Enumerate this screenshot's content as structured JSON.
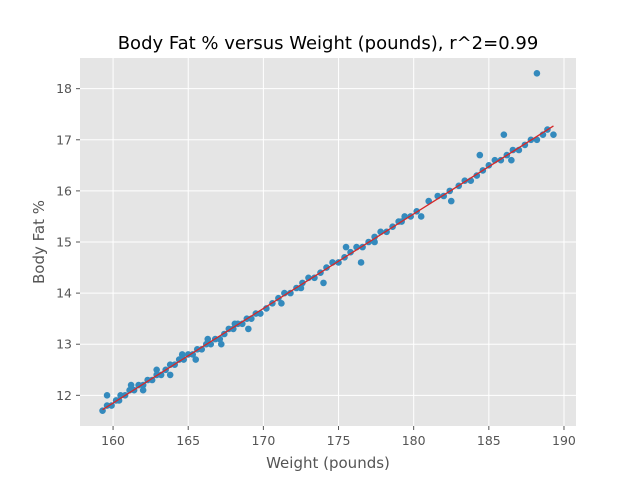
{
  "chart_data": {
    "type": "scatter",
    "title": "Body Fat % versus Weight (pounds), r^2=0.99",
    "xlabel": "Weight (pounds)",
    "ylabel": "Body Fat %",
    "xlim": [
      157.8,
      190.8
    ],
    "ylim": [
      11.4,
      18.6
    ],
    "xticks": [
      160,
      165,
      170,
      175,
      180,
      185,
      190
    ],
    "yticks": [
      12,
      13,
      14,
      15,
      16,
      17,
      18
    ],
    "grid": true,
    "colors": {
      "background": "#e5e5e5",
      "points": "#348abd",
      "fit_line": "#d62728"
    },
    "series": [
      {
        "kind": "points",
        "x": [
          159.3,
          159.6,
          159.9,
          160.2,
          160.5,
          160.8,
          161.1,
          161.4,
          161.7,
          162.0,
          162.3,
          162.6,
          162.9,
          163.2,
          163.5,
          163.8,
          164.1,
          164.4,
          164.7,
          165.0,
          165.3,
          165.6,
          165.9,
          166.2,
          166.5,
          166.8,
          167.1,
          167.4,
          167.7,
          168.0,
          168.3,
          168.6,
          168.9,
          169.2,
          169.5,
          169.8,
          170.2,
          170.6,
          171.0,
          171.4,
          171.8,
          172.2,
          172.6,
          173.0,
          173.4,
          173.8,
          174.2,
          174.6,
          175.0,
          175.4,
          175.8,
          176.2,
          176.6,
          177.0,
          177.4,
          177.8,
          178.2,
          178.6,
          179.0,
          179.4,
          179.8,
          180.2,
          181.0,
          181.6,
          182.0,
          182.4,
          183.0,
          183.4,
          183.8,
          184.2,
          184.6,
          185.0,
          185.4,
          185.8,
          186.2,
          186.6,
          187.0,
          187.4,
          187.8,
          188.2,
          188.6,
          188.9,
          189.3,
          159.6,
          160.4,
          161.2,
          162.0,
          162.9,
          163.8,
          164.6,
          165.5,
          166.3,
          167.2,
          168.1,
          169.0,
          171.2,
          172.5,
          174.0,
          175.5,
          176.5,
          177.4,
          179.2,
          180.5,
          182.5,
          184.4,
          186.0,
          186.5,
          188.2
        ],
        "y": [
          11.7,
          11.8,
          11.8,
          11.9,
          12.0,
          12.0,
          12.1,
          12.1,
          12.2,
          12.2,
          12.3,
          12.3,
          12.4,
          12.4,
          12.5,
          12.6,
          12.6,
          12.7,
          12.7,
          12.8,
          12.8,
          12.9,
          12.9,
          13.0,
          13.0,
          13.1,
          13.1,
          13.2,
          13.3,
          13.3,
          13.4,
          13.4,
          13.5,
          13.5,
          13.6,
          13.6,
          13.7,
          13.8,
          13.9,
          14.0,
          14.0,
          14.1,
          14.2,
          14.3,
          14.3,
          14.4,
          14.5,
          14.6,
          14.6,
          14.7,
          14.8,
          14.9,
          14.9,
          15.0,
          15.1,
          15.2,
          15.2,
          15.3,
          15.4,
          15.5,
          15.5,
          15.6,
          15.8,
          15.9,
          15.9,
          16.0,
          16.1,
          16.2,
          16.2,
          16.3,
          16.4,
          16.5,
          16.6,
          16.6,
          16.7,
          16.8,
          16.8,
          16.9,
          17.0,
          17.0,
          17.1,
          17.2,
          17.1,
          12.0,
          11.9,
          12.2,
          12.1,
          12.5,
          12.4,
          12.8,
          12.7,
          13.1,
          13.0,
          13.4,
          13.3,
          13.8,
          14.1,
          14.2,
          14.9,
          14.6,
          15.0,
          15.4,
          15.5,
          15.8,
          16.7,
          17.1,
          16.6,
          18.3
        ]
      },
      {
        "kind": "fit_line",
        "x": [
          159.3,
          189.3
        ],
        "y": [
          11.72,
          17.27
        ]
      }
    ]
  }
}
